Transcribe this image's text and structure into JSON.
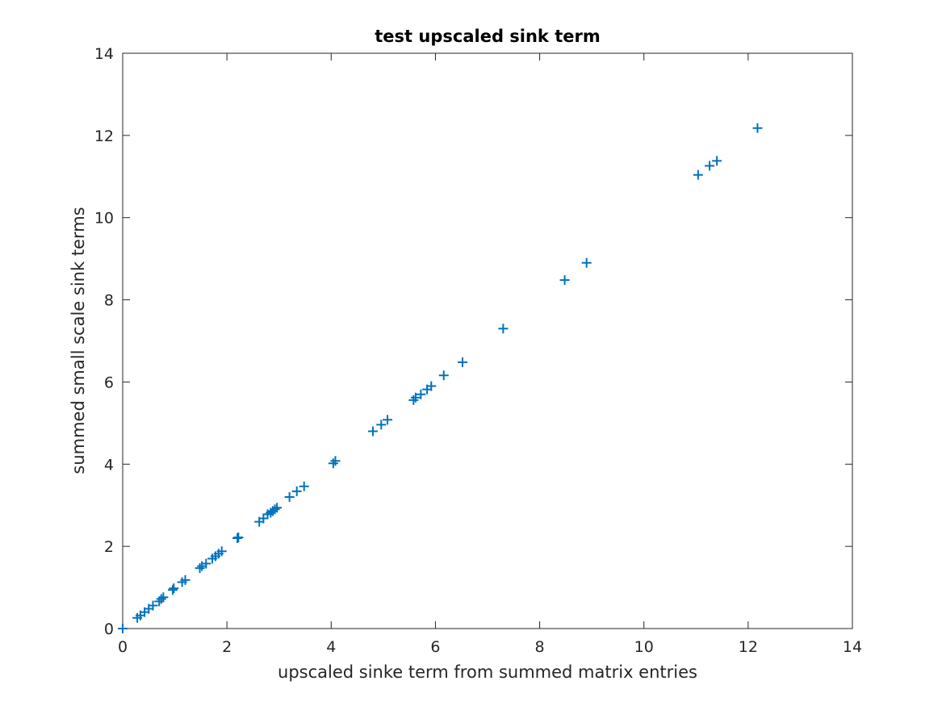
{
  "chart_data": {
    "type": "scatter",
    "title": "test upscaled sink term",
    "xlabel": "upscaled sinke term from summed matrix entries",
    "ylabel": "summed small scale sink terms",
    "xlim": [
      0,
      14
    ],
    "ylim": [
      0,
      14
    ],
    "xticks": [
      "0",
      "2",
      "4",
      "6",
      "8",
      "10",
      "12",
      "14"
    ],
    "yticks": [
      "0",
      "2",
      "4",
      "6",
      "8",
      "10",
      "12",
      "14"
    ],
    "grid": false,
    "marker": "+",
    "color": "#0072bd",
    "points": [
      [
        0.0,
        0.0
      ],
      [
        0.28,
        0.26
      ],
      [
        0.34,
        0.32
      ],
      [
        0.42,
        0.4
      ],
      [
        0.5,
        0.48
      ],
      [
        0.58,
        0.56
      ],
      [
        0.7,
        0.66
      ],
      [
        0.74,
        0.72
      ],
      [
        0.78,
        0.76
      ],
      [
        0.96,
        0.94
      ],
      [
        0.98,
        0.98
      ],
      [
        1.14,
        1.13
      ],
      [
        1.2,
        1.18
      ],
      [
        1.48,
        1.47
      ],
      [
        1.52,
        1.52
      ],
      [
        1.6,
        1.58
      ],
      [
        1.72,
        1.7
      ],
      [
        1.78,
        1.76
      ],
      [
        1.84,
        1.82
      ],
      [
        1.9,
        1.88
      ],
      [
        2.2,
        2.2
      ],
      [
        2.22,
        2.22
      ],
      [
        2.62,
        2.6
      ],
      [
        2.7,
        2.68
      ],
      [
        2.78,
        2.78
      ],
      [
        2.84,
        2.82
      ],
      [
        2.88,
        2.86
      ],
      [
        2.92,
        2.9
      ],
      [
        2.96,
        2.94
      ],
      [
        3.2,
        3.2
      ],
      [
        3.34,
        3.34
      ],
      [
        3.48,
        3.46
      ],
      [
        4.04,
        4.02
      ],
      [
        4.08,
        4.08
      ],
      [
        4.8,
        4.8
      ],
      [
        4.96,
        4.96
      ],
      [
        5.08,
        5.08
      ],
      [
        5.58,
        5.56
      ],
      [
        5.62,
        5.62
      ],
      [
        5.72,
        5.7
      ],
      [
        5.84,
        5.82
      ],
      [
        5.92,
        5.9
      ],
      [
        6.16,
        6.16
      ],
      [
        6.52,
        6.48
      ],
      [
        7.3,
        7.3
      ],
      [
        8.48,
        8.48
      ],
      [
        8.9,
        8.9
      ],
      [
        11.04,
        11.04
      ],
      [
        11.26,
        11.26
      ],
      [
        11.4,
        11.38
      ],
      [
        12.18,
        12.18
      ]
    ]
  }
}
